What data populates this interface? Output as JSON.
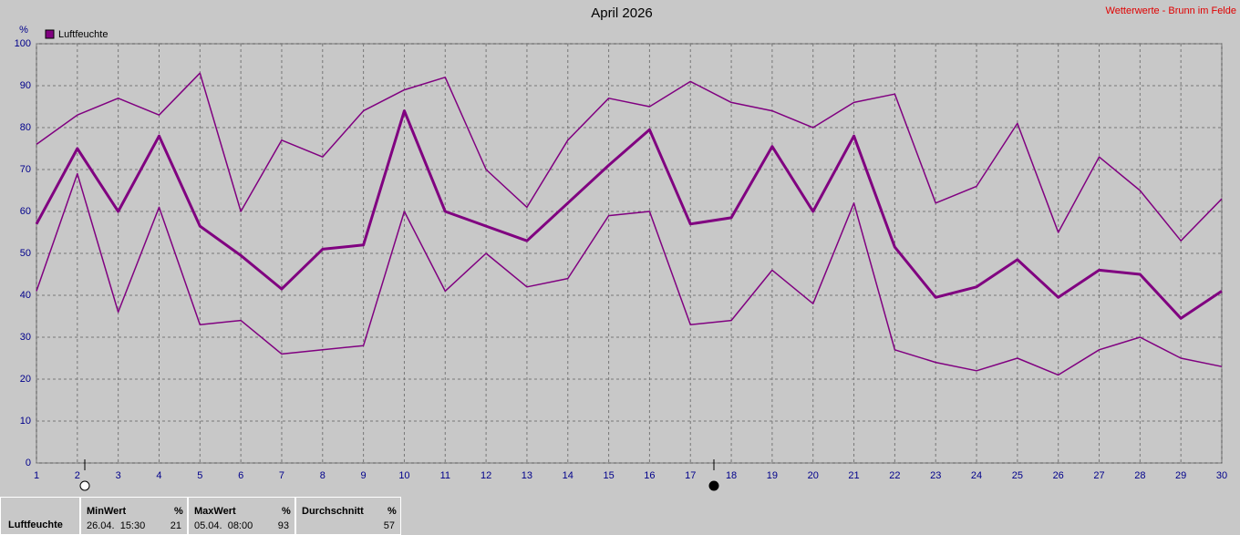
{
  "chart_data": {
    "type": "line",
    "title": "April 2026",
    "source": "Wetterwerte - Brunn im Felde",
    "ylabel": "%",
    "legend": "Luftfeuchte",
    "legend_color": "#800080",
    "x": [
      1,
      2,
      3,
      4,
      5,
      6,
      7,
      8,
      9,
      10,
      11,
      12,
      13,
      14,
      15,
      16,
      17,
      18,
      19,
      20,
      21,
      22,
      23,
      24,
      25,
      26,
      27,
      28,
      29,
      30
    ],
    "xlim": [
      1,
      30
    ],
    "xticks": [
      1,
      2,
      3,
      4,
      5,
      6,
      7,
      8,
      9,
      10,
      11,
      12,
      13,
      14,
      15,
      16,
      17,
      18,
      19,
      20,
      21,
      22,
      23,
      24,
      25,
      26,
      27,
      28,
      29,
      30
    ],
    "ylim": [
      0,
      100
    ],
    "yticks": [
      0,
      10,
      20,
      30,
      40,
      50,
      60,
      70,
      80,
      90,
      100
    ],
    "grid": true,
    "series": [
      {
        "color": "#800080",
        "line_width": 1.5,
        "values": [
          76,
          83,
          87,
          83,
          93,
          60,
          77,
          73,
          84,
          89,
          92,
          70,
          61,
          77,
          87,
          85,
          91,
          86,
          84,
          80,
          86,
          88,
          62,
          66,
          81,
          55,
          73,
          65,
          53,
          63
        ]
      },
      {
        "color": "#800080",
        "line_width": 3,
        "values": [
          57,
          75,
          60,
          78,
          56.5,
          49.5,
          41.5,
          51,
          52,
          84,
          60,
          56.5,
          53,
          62,
          71,
          79.5,
          57,
          58.5,
          75.5,
          60,
          78,
          51.5,
          39.5,
          42,
          48.5,
          39.5,
          46,
          45,
          34.5,
          41
        ]
      },
      {
        "color": "#800080",
        "line_width": 1.5,
        "values": [
          41,
          69,
          36,
          61,
          33,
          34,
          26,
          27,
          28,
          60,
          41,
          50,
          42,
          44,
          59,
          60,
          33,
          34,
          46,
          38,
          62,
          27,
          24,
          22,
          25,
          21,
          27,
          30,
          25,
          23
        ]
      }
    ]
  },
  "footer": {
    "label": "Luftfeuchte",
    "min": {
      "title": "MinWert",
      "unit": "%",
      "time": "26.04.  15:30",
      "value": "21"
    },
    "max": {
      "title": "MaxWert",
      "unit": "%",
      "time": "05.04.  08:00",
      "value": "93"
    },
    "avg": {
      "title": "Durchschnitt",
      "unit": "%",
      "value": "57"
    }
  }
}
